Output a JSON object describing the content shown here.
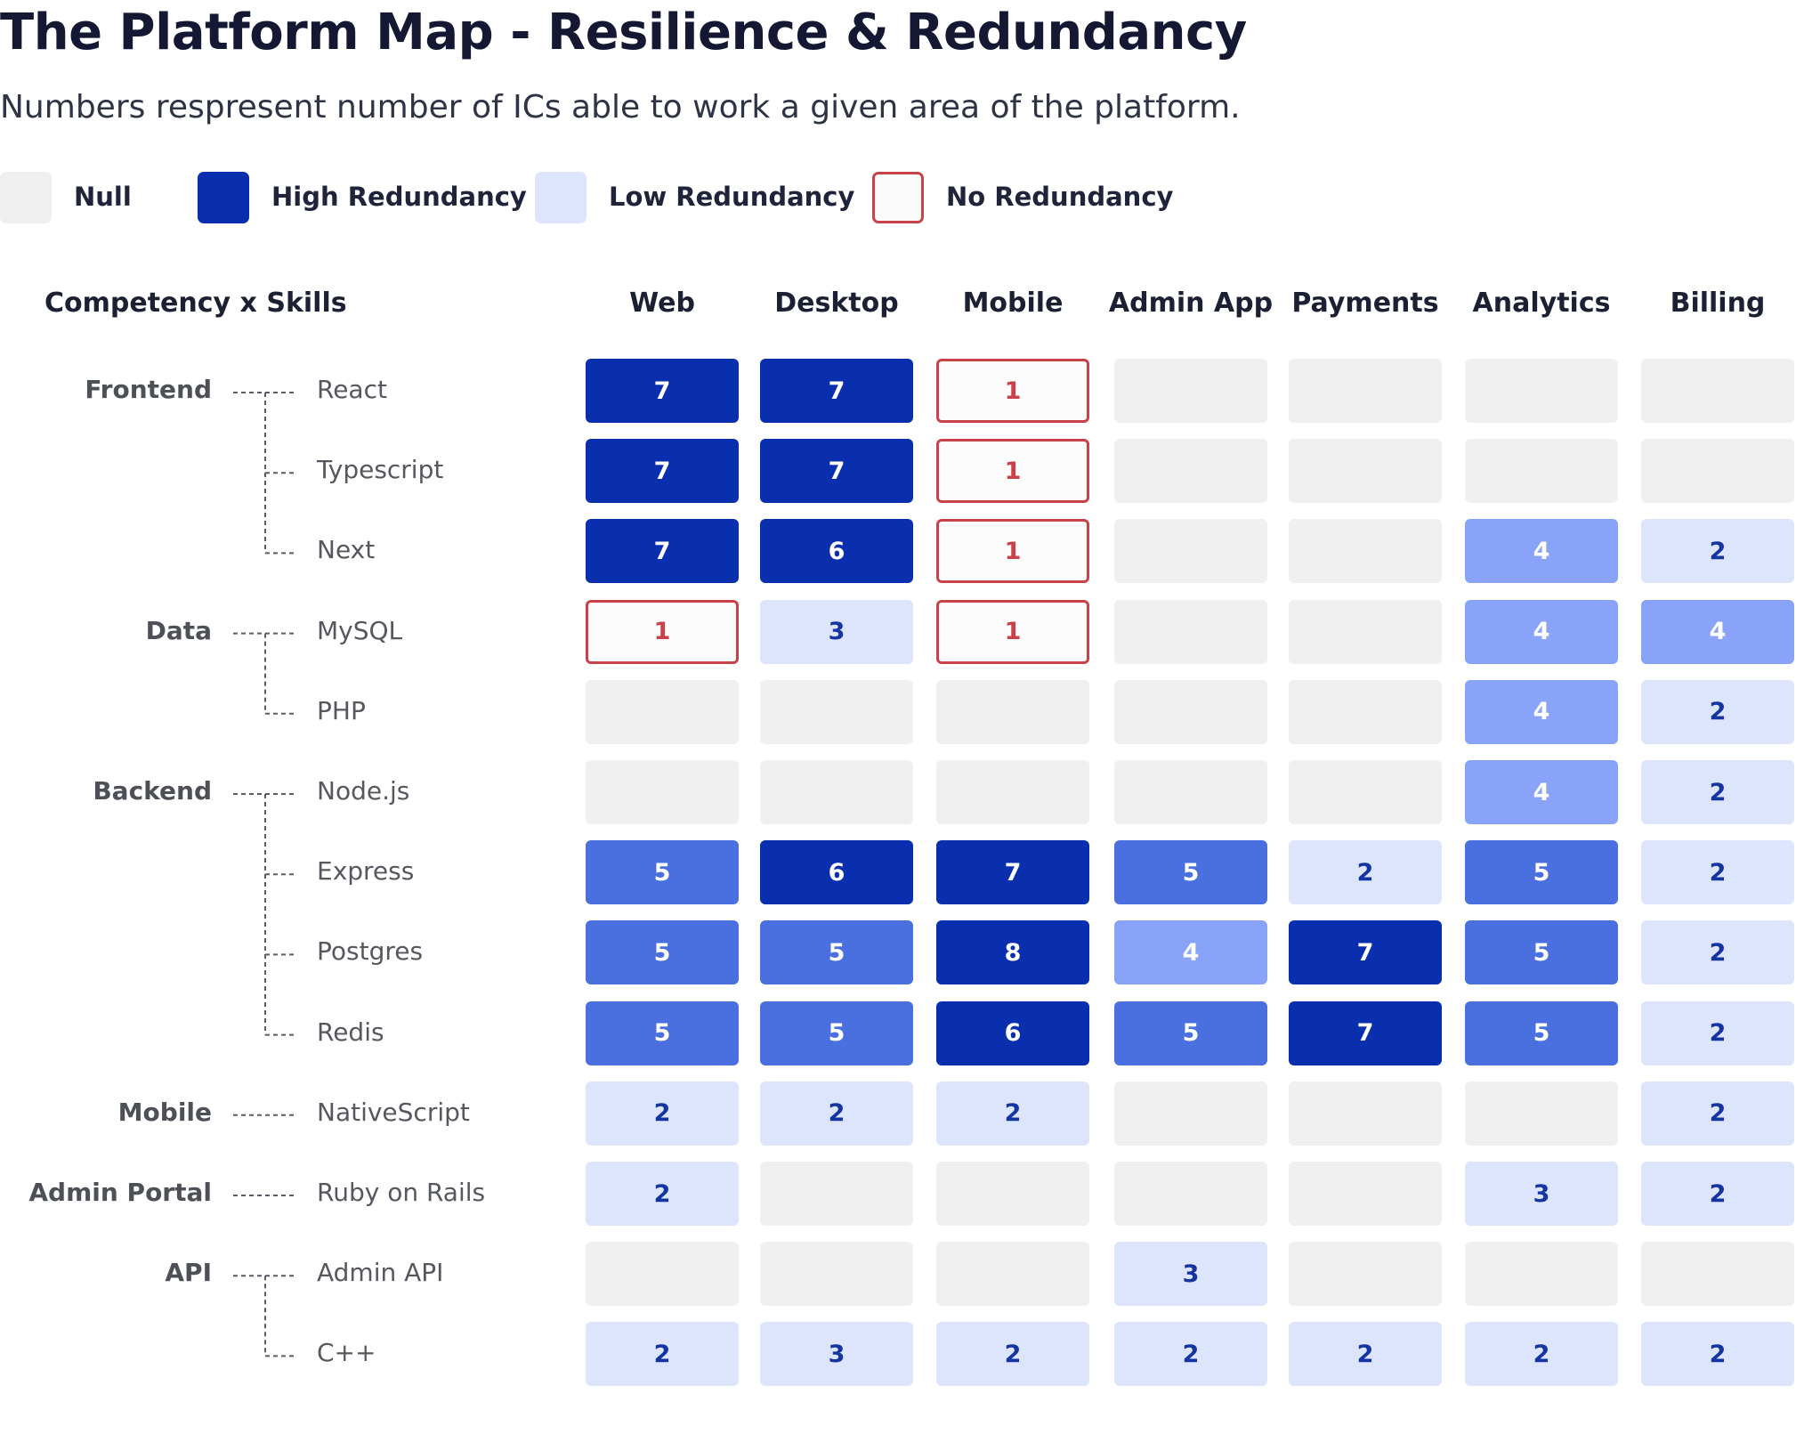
{
  "title": "The Platform Map - Resilience & Redundancy",
  "subtitle": "Numbers respresent number of ICs able to work a given area of the platform.",
  "legend": [
    {
      "label": "Null",
      "level": "null"
    },
    {
      "label": "High Redundancy",
      "level": "high"
    },
    {
      "label": "Low Redundancy",
      "level": "low"
    },
    {
      "label": "No Redundancy",
      "level": "none"
    }
  ],
  "colors": {
    "null": "#f0f0f0",
    "high": "#0a2fae",
    "mid": "#4a6fde",
    "light": "#89a3f8",
    "low": "#dde5fc",
    "none_border": "#c9424a"
  },
  "chart_data": {
    "type": "heatmap",
    "title": "The Platform Map - Resilience & Redundancy",
    "corner_label": "Competency x Skills",
    "columns": [
      "Web",
      "Desktop",
      "Mobile",
      "Admin App",
      "Payments",
      "Analytics",
      "Billing"
    ],
    "groups": [
      {
        "name": "Frontend",
        "skills": [
          "React",
          "Typescript",
          "Next"
        ]
      },
      {
        "name": "Data",
        "skills": [
          "MySQL",
          "PHP"
        ]
      },
      {
        "name": "Backend",
        "skills": [
          "Node.js",
          "Express",
          "Postgres",
          "Redis"
        ]
      },
      {
        "name": "Mobile",
        "skills": [
          "NativeScript"
        ]
      },
      {
        "name": "Admin Portal",
        "skills": [
          "Ruby on Rails"
        ]
      },
      {
        "name": "API",
        "skills": [
          "Admin API",
          "C++"
        ]
      }
    ],
    "values": [
      [
        7,
        7,
        1,
        null,
        null,
        null,
        null
      ],
      [
        7,
        7,
        1,
        null,
        null,
        null,
        null
      ],
      [
        7,
        6,
        1,
        null,
        null,
        4,
        2
      ],
      [
        1,
        3,
        1,
        null,
        null,
        4,
        4
      ],
      [
        null,
        null,
        null,
        null,
        null,
        4,
        2
      ],
      [
        null,
        null,
        null,
        null,
        null,
        4,
        2
      ],
      [
        5,
        6,
        7,
        5,
        2,
        5,
        2
      ],
      [
        5,
        5,
        8,
        4,
        7,
        5,
        2
      ],
      [
        5,
        5,
        6,
        5,
        7,
        5,
        2
      ],
      [
        2,
        2,
        2,
        null,
        null,
        null,
        2
      ],
      [
        2,
        null,
        null,
        null,
        null,
        3,
        2
      ],
      [
        null,
        null,
        null,
        3,
        null,
        null,
        null
      ],
      [
        2,
        3,
        2,
        2,
        2,
        2,
        2
      ]
    ]
  }
}
